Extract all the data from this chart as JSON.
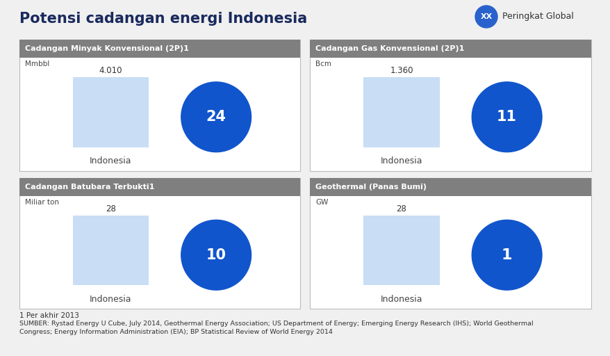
{
  "title": "Potensi cadangan energi Indonesia",
  "badge_text": "XX",
  "badge_label": "Peringkat Global",
  "panels": [
    {
      "title": "Cadangan Minyak Konvensional (2P)1",
      "unit": "Mmbbl",
      "bar_value": "4.010",
      "circle_rank": "24",
      "label": "Indonesia"
    },
    {
      "title": "Cadangan Gas Konvensional (2P)1",
      "unit": "Bcm",
      "bar_value": "1.360",
      "circle_rank": "11",
      "label": "Indonesia"
    },
    {
      "title": "Cadangan Batubara Terbukti1",
      "unit": "Miliar ton",
      "bar_value": "28",
      "circle_rank": "10",
      "label": "Indonesia"
    },
    {
      "title": "Geothermal (Panas Bumi)",
      "unit": "GW",
      "bar_value": "28",
      "circle_rank": "1",
      "label": "Indonesia"
    }
  ],
  "footnote1": "1 Per akhir 2013",
  "footnote2": "SUMBER: Rystad Energy U Cube, July 2014, Geothermal Energy Association; US Department of Energy; Emerging Energy Research (IHS); World Geothermal\nCongress; Energy Information Administration (EIA); BP Statistical Review of World Energy 2014",
  "bg_color": "#f0f0f0",
  "panel_bg": "#ffffff",
  "header_bg": "#7f7f7f",
  "header_text_color": "#ffffff",
  "bar_color": "#c9ddf5",
  "circle_color": "#1155cc",
  "circle_text_color": "#ffffff",
  "badge_color": "#2962cc",
  "title_color": "#1a2a5e",
  "panel_border_color": "#bbbbbb"
}
